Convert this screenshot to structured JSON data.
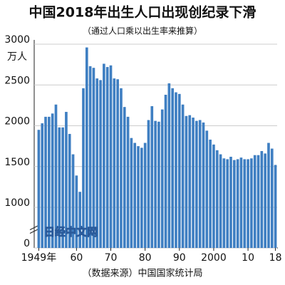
{
  "chart_data": {
    "type": "bar",
    "title": "中国2018年出生人口出现创纪录下滑",
    "subtitle": "（通过人口乘以出生率来推算）",
    "y_label": "万人",
    "source": "（数据来源）中国国家统计局",
    "watermark": "日经中文网",
    "color": "#3f7fc2",
    "grid": true,
    "axis_break": [
      0,
      1000
    ],
    "ylim": [
      0,
      3000
    ],
    "yticks": [
      0,
      1000,
      1500,
      2000,
      2500,
      3000
    ],
    "xticks": [
      {
        "value": 1949,
        "label": "1949年"
      },
      {
        "value": 1960,
        "label": "60"
      },
      {
        "value": 1970,
        "label": "70"
      },
      {
        "value": 1980,
        "label": "80"
      },
      {
        "value": 1990,
        "label": "90"
      },
      {
        "value": 2000,
        "label": "2000"
      },
      {
        "value": 2010,
        "label": "10"
      },
      {
        "value": 2018,
        "label": "18"
      }
    ],
    "x": [
      1949,
      1950,
      1951,
      1952,
      1953,
      1954,
      1955,
      1956,
      1957,
      1958,
      1959,
      1960,
      1961,
      1962,
      1963,
      1964,
      1965,
      1966,
      1967,
      1968,
      1969,
      1970,
      1971,
      1972,
      1973,
      1974,
      1975,
      1976,
      1977,
      1978,
      1979,
      1980,
      1981,
      1982,
      1983,
      1984,
      1985,
      1986,
      1987,
      1988,
      1989,
      1990,
      1991,
      1992,
      1993,
      1994,
      1995,
      1996,
      1997,
      1998,
      1999,
      2000,
      2001,
      2002,
      2003,
      2004,
      2005,
      2006,
      2007,
      2008,
      2009,
      2010,
      2011,
      2012,
      2013,
      2014,
      2015,
      2016,
      2017,
      2018
    ],
    "values": [
      1950,
      2030,
      2110,
      2110,
      2150,
      2260,
      1980,
      1980,
      2170,
      1900,
      1650,
      1390,
      1190,
      2460,
      2960,
      2730,
      2710,
      2580,
      2560,
      2760,
      2720,
      2740,
      2580,
      2570,
      2460,
      2230,
      2110,
      1850,
      1790,
      1750,
      1730,
      1790,
      2070,
      2240,
      2060,
      2050,
      2200,
      2380,
      2520,
      2460,
      2410,
      2390,
      2260,
      2120,
      2130,
      2100,
      2060,
      2070,
      2040,
      1940,
      1830,
      1770,
      1700,
      1650,
      1600,
      1590,
      1620,
      1580,
      1590,
      1610,
      1590,
      1590,
      1600,
      1640,
      1640,
      1690,
      1660,
      1790,
      1720,
      1520
    ]
  }
}
